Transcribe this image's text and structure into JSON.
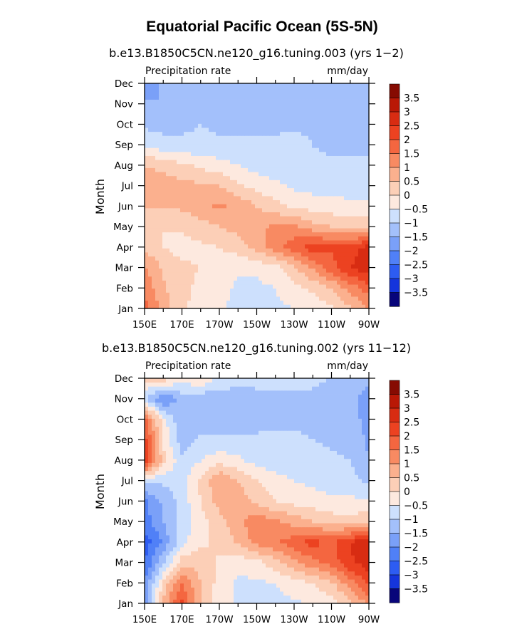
{
  "chart_data": {
    "type": "heatmap",
    "title": "Equatorial Pacific Ocean (5S-5N)",
    "colormap": [
      "#08057a",
      "#0b0fb5",
      "#1535dc",
      "#2d5cf2",
      "#5080f7",
      "#7aa0f8",
      "#a3c0fb",
      "#cde0fd",
      "#dbeefc",
      "#fde9df",
      "#fccfb7",
      "#fbb08e",
      "#f88a62",
      "#f46640",
      "#ec4221",
      "#d82c12",
      "#b91806",
      "#860b02"
    ],
    "levels": [
      -3.5,
      -3,
      -2.5,
      -2,
      -1.5,
      -1,
      -0.5,
      0,
      0.5,
      1,
      1.5,
      2,
      2.5,
      3,
      3.5
    ],
    "colorbar_labels": [
      "3.5",
      "3",
      "2.5",
      "2",
      "1.5",
      "1",
      "0.5",
      "0",
      "−0.5",
      "−1",
      "−1.5",
      "−2",
      "−2.5",
      "−3",
      "−3.5"
    ],
    "panels": [
      {
        "subtitle": "b.e13.B1850C5CN.ne120_g16.tuning.003 (yrs 1−2)",
        "left_label": "Precipitation rate",
        "right_label": "mm/day",
        "xlabel": "",
        "ylabel": "Month",
        "x_ticks": [
          "150E",
          "170E",
          "170W",
          "150W",
          "130W",
          "110W",
          "90W"
        ],
        "y_ticks": [
          "Jan",
          "Feb",
          "Mar",
          "Apr",
          "May",
          "Jun",
          "Jul",
          "Aug",
          "Sep",
          "Oct",
          "Nov",
          "Dec"
        ],
        "grid_lon": [
          150,
          160,
          170,
          180,
          190,
          200,
          210,
          220,
          230,
          240,
          250,
          260,
          270
        ],
        "values": [
          [
            2.2,
            1.3,
            0.6,
            0.3,
            0.1,
            -0.2,
            -0.2,
            -0.1,
            0,
            0.2,
            0.4,
            0.9,
            1.5
          ],
          [
            1.8,
            1.1,
            0.6,
            0.4,
            0.2,
            -0.1,
            -0.1,
            0,
            0.3,
            0.6,
            1.0,
            1.7,
            2.3
          ],
          [
            1.6,
            0.9,
            0.6,
            0.5,
            0.3,
            0.1,
            0.1,
            0.3,
            0.9,
            1.6,
            2.3,
            3.0,
            3.3
          ],
          [
            0.9,
            0.5,
            0.3,
            0.4,
            0.5,
            0.7,
            1.2,
            1.8,
            2.3,
            2.8,
            2.6,
            2.8,
            3.2
          ],
          [
            0.6,
            0.5,
            0.6,
            0.8,
            1.0,
            1.2,
            1.4,
            1.6,
            1.6,
            1.2,
            1.0,
            0.8,
            0.8
          ],
          [
            1.0,
            1.0,
            1.1,
            1.3,
            1.6,
            1.4,
            1.0,
            0.7,
            0.4,
            0.3,
            0.2,
            0.1,
            0.1
          ],
          [
            1.5,
            1.3,
            1.2,
            1.1,
            1.0,
            0.6,
            0.3,
            0.1,
            -0.1,
            -0.2,
            -0.2,
            -0.2,
            -0.2
          ],
          [
            1.0,
            0.8,
            0.6,
            0.4,
            0.2,
            0,
            -0.2,
            -0.3,
            -0.3,
            -0.4,
            -0.4,
            -0.4,
            -0.4
          ],
          [
            -0.1,
            -0.3,
            -0.4,
            -0.4,
            -0.4,
            -0.3,
            -0.3,
            -0.3,
            -0.3,
            -0.5,
            -0.6,
            -0.6,
            -0.6
          ],
          [
            -0.6,
            -0.7,
            -0.6,
            -0.5,
            -0.6,
            -0.8,
            -0.8,
            -0.7,
            -0.6,
            -0.6,
            -0.8,
            -0.8,
            -0.8
          ],
          [
            -0.9,
            -1.0,
            -0.9,
            -0.8,
            -0.9,
            -1.0,
            -0.9,
            -0.8,
            -0.7,
            -0.7,
            -0.9,
            -0.9,
            -0.9
          ],
          [
            -1.6,
            -0.9,
            -0.6,
            -0.6,
            -0.6,
            -0.6,
            -0.6,
            -0.5,
            -0.5,
            -0.5,
            -0.6,
            -0.6,
            -0.6
          ]
        ]
      },
      {
        "subtitle": "b.e13.B1850C5CN.ne120_g16.tuning.002 (yrs 11−12)",
        "left_label": "Precipitation rate",
        "right_label": "mm/day",
        "xlabel": "",
        "ylabel": "Month",
        "x_ticks": [
          "150E",
          "170E",
          "170W",
          "150W",
          "130W",
          "110W",
          "90W"
        ],
        "y_ticks": [
          "Jan",
          "Feb",
          "Mar",
          "Apr",
          "May",
          "Jun",
          "Jul",
          "Aug",
          "Sep",
          "Oct",
          "Nov",
          "Dec"
        ],
        "grid_lon": [
          150,
          160,
          170,
          180,
          190,
          200,
          210,
          220,
          230,
          240,
          250,
          260,
          270
        ],
        "values": [
          [
            -1.2,
            1.2,
            2.6,
            1.0,
            0.2,
            -0.1,
            -0.2,
            -0.2,
            -0.1,
            0.1,
            0.3,
            0.8,
            1.6
          ],
          [
            -1.5,
            0.6,
            2.0,
            1.0,
            0.3,
            -0.1,
            -0.1,
            0,
            0.3,
            0.5,
            0.9,
            1.8,
            2.6
          ],
          [
            -2.0,
            -0.6,
            0.8,
            0.8,
            0.4,
            0.2,
            0.3,
            0.8,
            1.4,
            1.8,
            2.2,
            2.9,
            3.3
          ],
          [
            -2.3,
            -1.4,
            -0.2,
            0.4,
            0.6,
            1.1,
            1.7,
            1.9,
            2.3,
            2.7,
            2.4,
            3.0,
            3.4
          ],
          [
            -1.8,
            -1.0,
            -0.3,
            0.3,
            0.8,
            1.4,
            1.8,
            1.6,
            1.3,
            1.0,
            0.8,
            0.7,
            0.9
          ],
          [
            -1.6,
            -0.9,
            -0.3,
            0.5,
            1.2,
            1.3,
            0.9,
            0.5,
            0.3,
            0.2,
            0.1,
            0.1,
            0.1
          ],
          [
            -0.4,
            -0.4,
            -0.2,
            0.6,
            1.5,
            1.0,
            0.5,
            0.2,
            0,
            -0.1,
            -0.2,
            -0.3,
            -0.6
          ],
          [
            3.2,
            0.7,
            -0.4,
            0,
            0.3,
            0.1,
            -0.2,
            -0.3,
            -0.3,
            -0.3,
            -0.4,
            -0.5,
            -1.0
          ],
          [
            2.8,
            0.4,
            -0.8,
            -0.4,
            -0.4,
            -0.4,
            -0.4,
            -0.4,
            -0.4,
            -0.5,
            -0.6,
            -0.7,
            -1.1
          ],
          [
            2.2,
            0.2,
            -1.0,
            -0.7,
            -0.7,
            -0.7,
            -0.7,
            -0.6,
            -0.6,
            -0.7,
            -0.8,
            -0.9,
            -1.1
          ],
          [
            -0.4,
            -1.6,
            -0.8,
            -0.9,
            -0.8,
            -0.8,
            -0.6,
            -0.6,
            -0.6,
            -0.6,
            -0.7,
            -0.9,
            -1.2
          ],
          [
            0.6,
            0.8,
            0.2,
            0.5,
            -0.1,
            -0.3,
            -0.4,
            -0.3,
            -0.3,
            -0.4,
            -0.5,
            -0.6,
            -0.9
          ]
        ]
      }
    ]
  }
}
